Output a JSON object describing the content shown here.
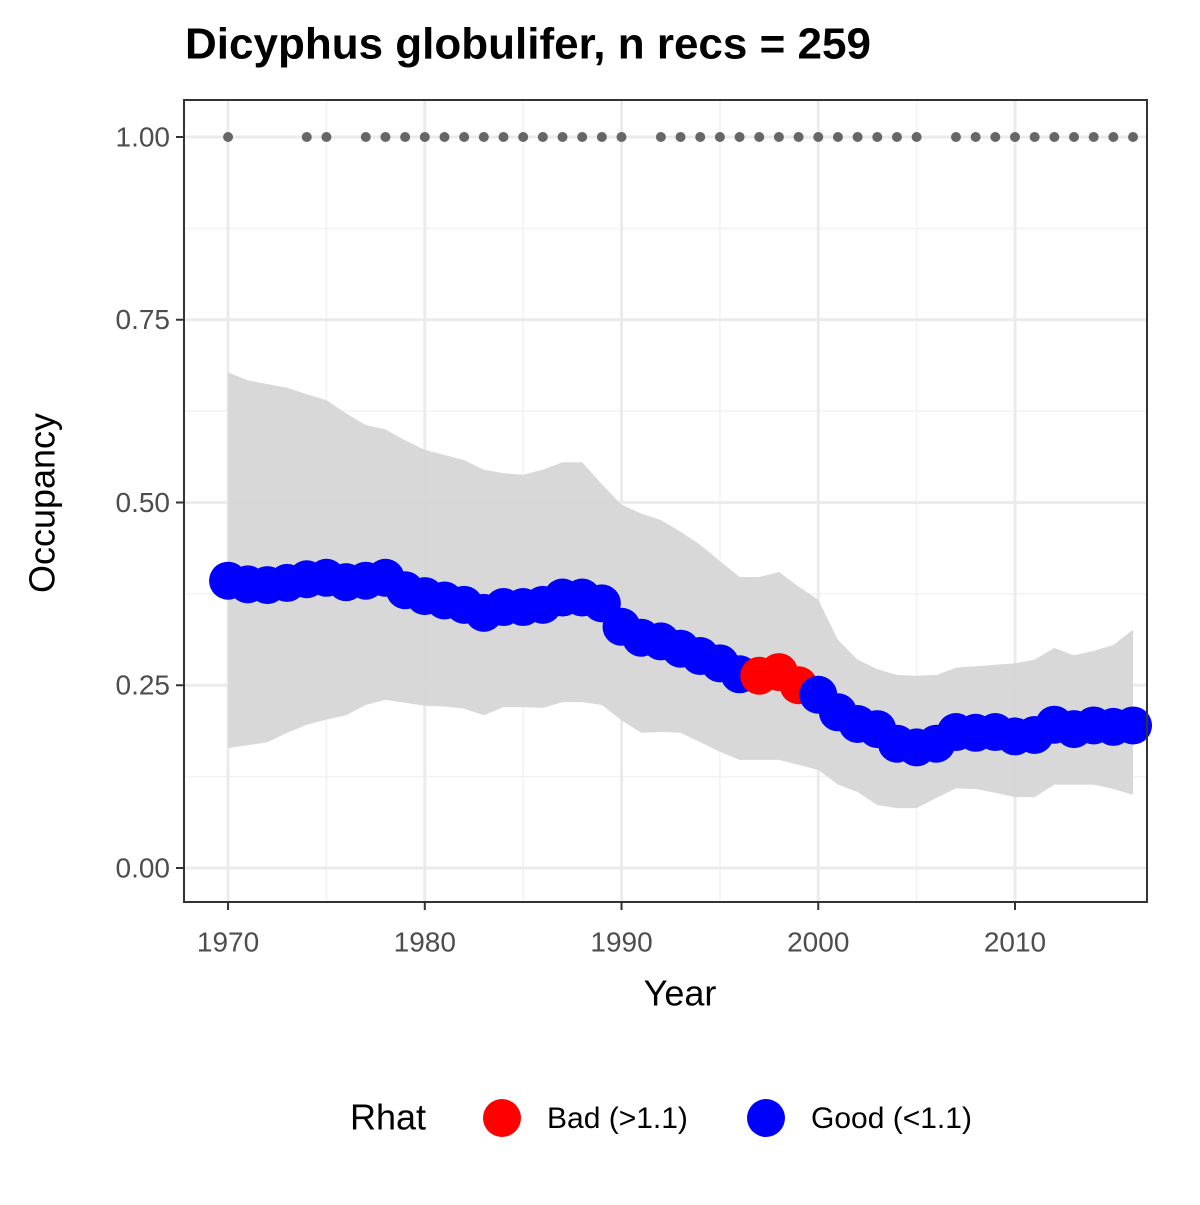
{
  "chart_data": {
    "type": "scatter",
    "title": "Dicyphus globulifer, n recs = 259",
    "x_label": "Year",
    "y_label": "Occupancy",
    "x": [
      1970,
      1971,
      1972,
      1973,
      1974,
      1975,
      1976,
      1977,
      1978,
      1979,
      1980,
      1981,
      1982,
      1983,
      1984,
      1985,
      1986,
      1987,
      1988,
      1989,
      1990,
      1991,
      1992,
      1993,
      1994,
      1995,
      1996,
      1997,
      1998,
      1999,
      2000,
      2001,
      2002,
      2003,
      2004,
      2005,
      2006,
      2007,
      2008,
      2009,
      2010,
      2011,
      2012,
      2013,
      2014,
      2015,
      2016
    ],
    "series": [
      {
        "name": "Bad (>1.1)",
        "color": "#ff0000",
        "values": [
          null,
          null,
          null,
          null,
          null,
          null,
          null,
          null,
          null,
          null,
          null,
          null,
          null,
          null,
          null,
          null,
          null,
          null,
          null,
          null,
          null,
          null,
          null,
          null,
          null,
          null,
          null,
          0.263,
          0.268,
          0.25,
          null,
          null,
          null,
          null,
          null,
          null,
          null,
          null,
          null,
          null,
          null,
          null,
          null,
          null,
          null,
          null,
          null
        ]
      },
      {
        "name": "Good (<1.1)",
        "color": "#0000ff",
        "values": [
          0.393,
          0.388,
          0.387,
          0.39,
          0.395,
          0.397,
          0.391,
          0.393,
          0.397,
          0.38,
          0.372,
          0.366,
          0.36,
          0.349,
          0.357,
          0.357,
          0.36,
          0.37,
          0.37,
          0.362,
          0.33,
          0.315,
          0.31,
          0.3,
          0.29,
          0.28,
          0.265,
          null,
          null,
          null,
          0.237,
          0.213,
          0.197,
          0.19,
          0.17,
          0.165,
          0.17,
          0.186,
          0.185,
          0.186,
          0.18,
          0.182,
          0.196,
          0.19,
          0.195,
          0.193,
          0.195
        ]
      }
    ],
    "band": {
      "color": "#d6d6d6",
      "upper": [
        0.678,
        0.667,
        0.662,
        0.657,
        0.648,
        0.64,
        0.622,
        0.606,
        0.6,
        0.585,
        0.572,
        0.565,
        0.558,
        0.545,
        0.54,
        0.538,
        0.545,
        0.555,
        0.555,
        0.525,
        0.497,
        0.485,
        0.476,
        0.46,
        0.442,
        0.42,
        0.398,
        0.398,
        0.405,
        0.385,
        0.367,
        0.312,
        0.285,
        0.272,
        0.264,
        0.263,
        0.264,
        0.274,
        0.276,
        0.278,
        0.28,
        0.285,
        0.301,
        0.291,
        0.297,
        0.305,
        0.326
      ],
      "lower": [
        0.164,
        0.168,
        0.172,
        0.185,
        0.196,
        0.203,
        0.209,
        0.223,
        0.23,
        0.226,
        0.222,
        0.221,
        0.218,
        0.209,
        0.22,
        0.22,
        0.219,
        0.227,
        0.227,
        0.223,
        0.202,
        0.185,
        0.186,
        0.185,
        0.172,
        0.159,
        0.148,
        0.148,
        0.148,
        0.141,
        0.134,
        0.114,
        0.104,
        0.086,
        0.082,
        0.082,
        0.096,
        0.109,
        0.108,
        0.103,
        0.097,
        0.097,
        0.114,
        0.114,
        0.114,
        0.108,
        0.1
      ]
    },
    "records": {
      "color": "#666666",
      "x": [
        1970,
        1974,
        1975,
        1977,
        1978,
        1979,
        1980,
        1981,
        1982,
        1983,
        1984,
        1985,
        1986,
        1987,
        1988,
        1989,
        1990,
        1992,
        1993,
        1994,
        1995,
        1996,
        1997,
        1998,
        1999,
        2000,
        2001,
        2002,
        2003,
        2004,
        2005,
        2007,
        2008,
        2009,
        2010,
        2011,
        2012,
        2013,
        2014,
        2015,
        2016
      ],
      "values": [
        1,
        1,
        1,
        1,
        1,
        1,
        1,
        1,
        1,
        1,
        1,
        1,
        1,
        1,
        1,
        1,
        1,
        1,
        1,
        1,
        1,
        1,
        1,
        1,
        1,
        1,
        1,
        1,
        1,
        1,
        1,
        1,
        1,
        1,
        1,
        1,
        1,
        1,
        1,
        1,
        1
      ]
    },
    "legend_title": "Rhat",
    "xlim": [
      1967.76,
      2016.71
    ],
    "ylim": [
      -0.0465,
      1.0506
    ],
    "xticks": [
      1970,
      1980,
      1990,
      2000,
      2010
    ],
    "yticks": [
      {
        "value": 0,
        "label": "0.00"
      },
      {
        "value": 0.25,
        "label": "0.25"
      },
      {
        "value": 0.5,
        "label": "0.50"
      },
      {
        "value": 0.75,
        "label": "0.75"
      },
      {
        "value": 1,
        "label": "1.00"
      }
    ],
    "grid": true,
    "legend_position": "bottom"
  }
}
